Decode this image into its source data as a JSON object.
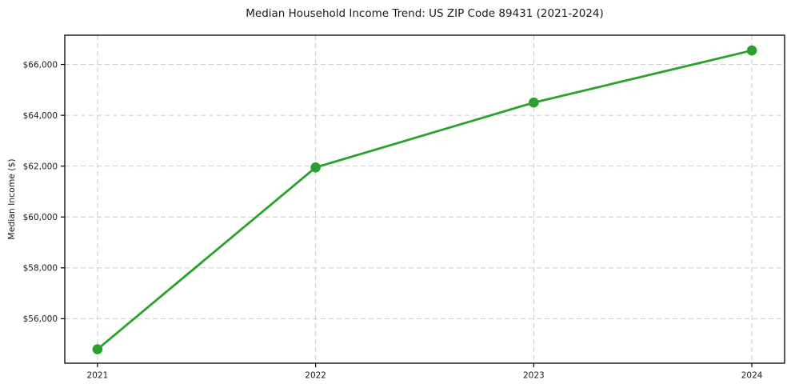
{
  "figure": {
    "background": "#ffffff"
  },
  "chart_data": {
    "type": "line",
    "title": "Median Household Income Trend: US ZIP Code 89431 (2021-2024)",
    "xlabel": "",
    "ylabel": "Median Income ($)",
    "x": [
      2021,
      2022,
      2023,
      2024
    ],
    "values": [
      54800,
      61950,
      64500,
      66550
    ],
    "x_tick_labels": [
      "2021",
      "2022",
      "2023",
      "2024"
    ],
    "y_ticks": [
      56000,
      58000,
      60000,
      62000,
      64000,
      66000
    ],
    "y_tick_labels": [
      "$56,000",
      "$58,000",
      "$60,000",
      "$62,000",
      "$64,000",
      "$66,000"
    ],
    "xlim": [
      2020.85,
      2024.15
    ],
    "ylim": [
      54250,
      67150
    ],
    "grid": true,
    "grid_style": "dashed",
    "legend": "none",
    "line_color": "#2ca02c",
    "marker": "circle",
    "marker_radius": 6.3,
    "line_width": 2.8,
    "grid_color": "#cccccc",
    "axis_color": "#000000",
    "text_color": "#1a1a1a"
  }
}
